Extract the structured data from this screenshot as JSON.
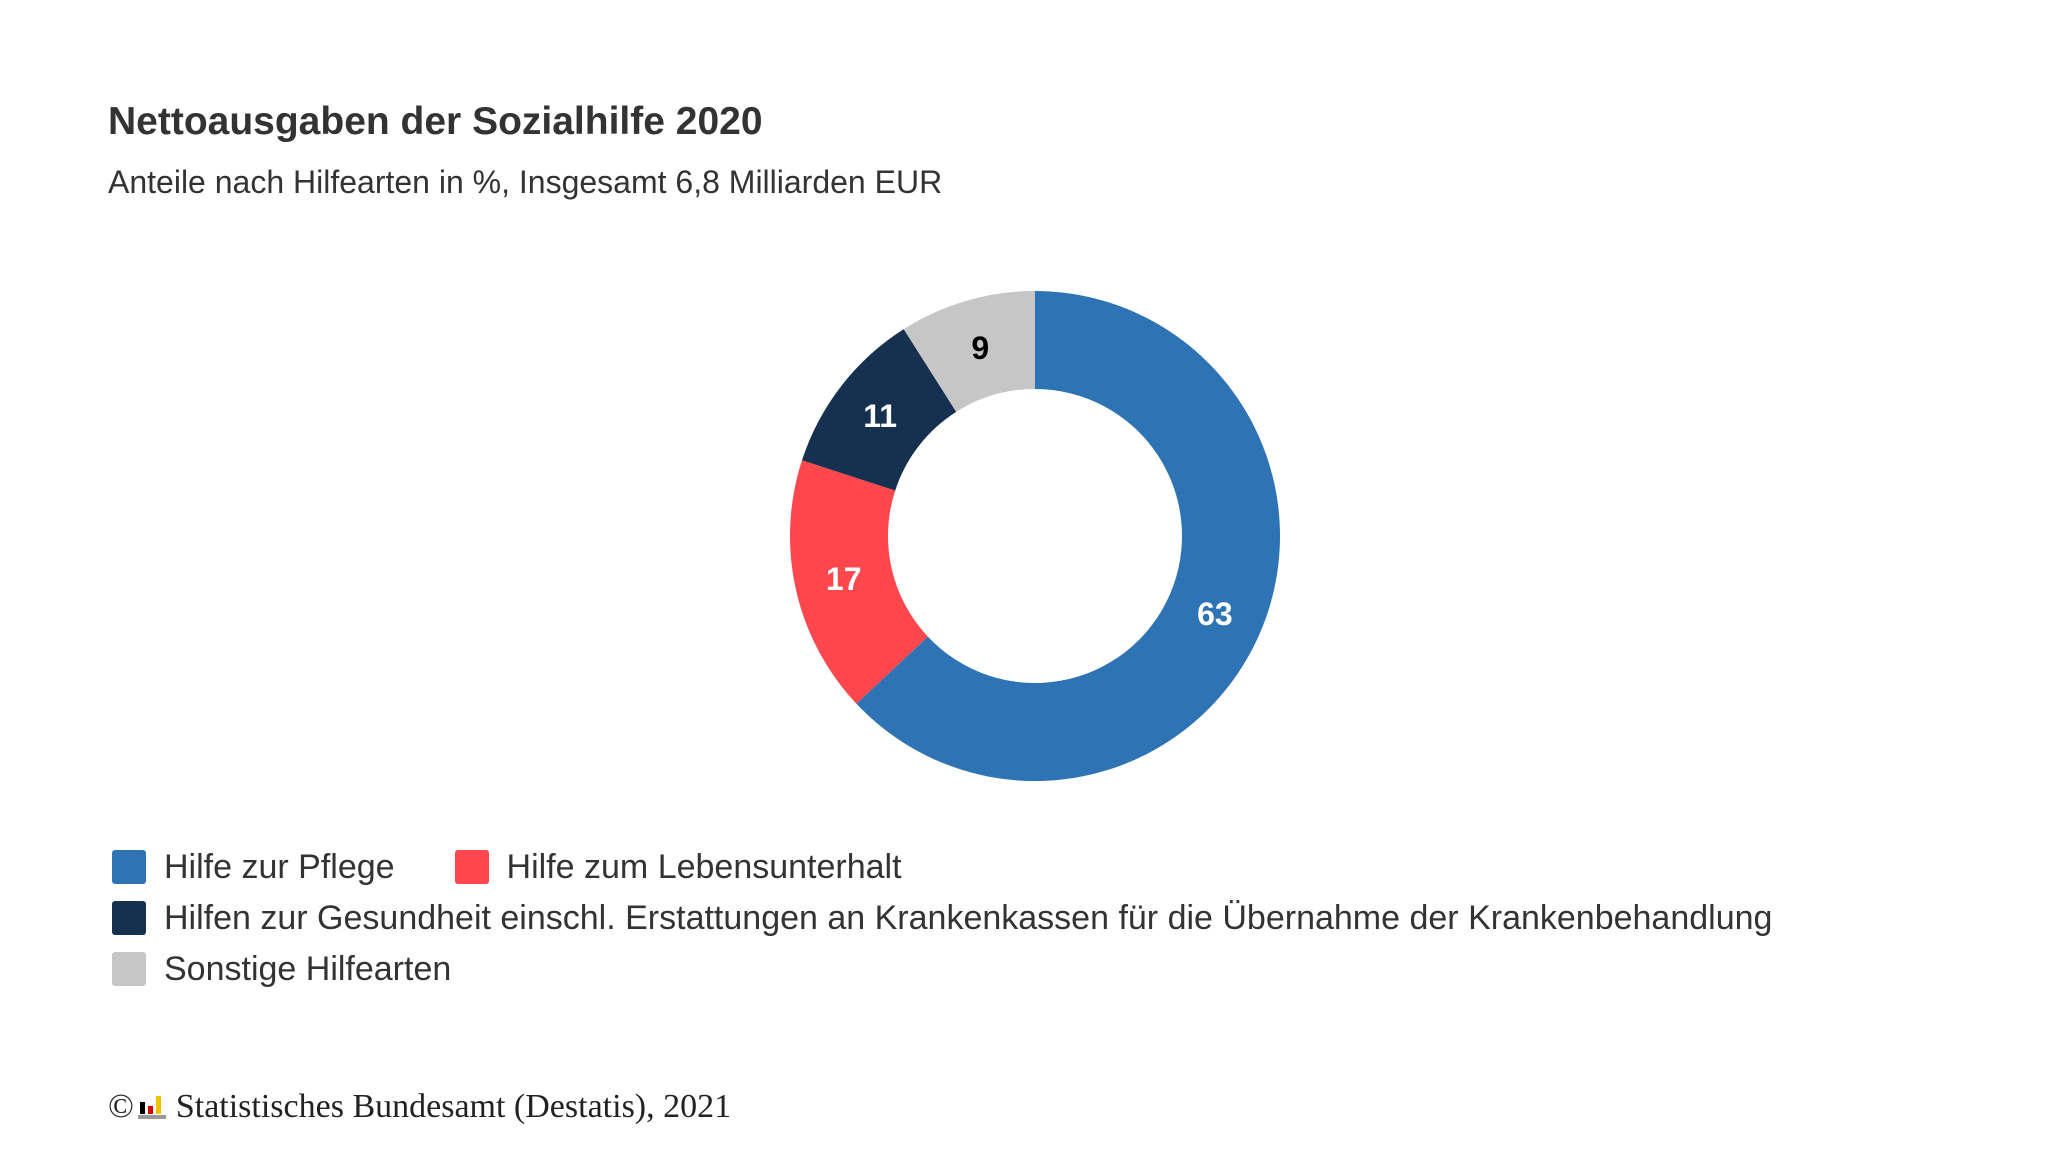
{
  "chart_data": {
    "type": "donut",
    "title": "Nettoausgaben der Sozialhilfe 2020",
    "subtitle": "Anteile nach Hilfearten in %, Insgesamt 6,8 Milliarden EUR",
    "categories": [
      "Hilfe zur Pflege",
      "Hilfe zum Lebensunterhalt",
      "Hilfen zur Gesundheit einschl. Erstattungen an Krankenkassen für die Übernahme der Krankenbehandlung",
      "Sonstige Hilfearten"
    ],
    "values": [
      63,
      17,
      11,
      9
    ],
    "colors": [
      "#2e74b5",
      "#ff474d",
      "#16304f",
      "#c6c6c6"
    ],
    "copyright": "©",
    "source": "Statistisches Bundesamt (Destatis), 2021"
  }
}
